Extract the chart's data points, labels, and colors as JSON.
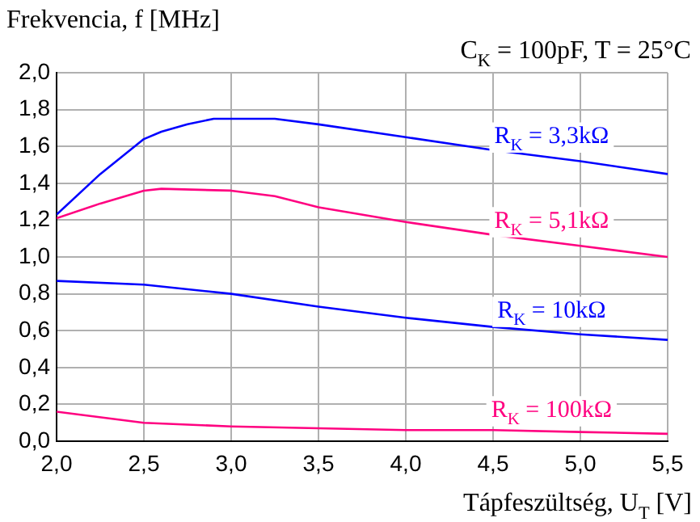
{
  "chart_data": {
    "type": "line",
    "ylabel": "Frekvencia, f [MHz]",
    "xlabel": "Tápfeszültség, U$_{T}$ [V]",
    "annotations": [
      "C$_{K}$ = 100pF, T = 25°C"
    ],
    "xlim": [
      2.0,
      5.5
    ],
    "xticks": [
      {
        "value": 2,
        "label": "2,0"
      },
      {
        "value": 2.5,
        "label": "2,5"
      },
      {
        "value": 3,
        "label": "3,0"
      },
      {
        "value": 3.5,
        "label": "3,5"
      },
      {
        "value": 4,
        "label": "4,0"
      },
      {
        "value": 4.5,
        "label": "4,5"
      },
      {
        "value": 5,
        "label": "5,0"
      },
      {
        "value": 5.5,
        "label": "5,5"
      }
    ],
    "ylim": [
      0,
      2.0
    ],
    "yticks": [
      {
        "value": 0,
        "label": "0,0"
      },
      {
        "value": 0.2,
        "label": "0,2"
      },
      {
        "value": 0.4,
        "label": "0,4"
      },
      {
        "value": 0.6,
        "label": "0,6"
      },
      {
        "value": 0.8,
        "label": "0,8"
      },
      {
        "value": 1,
        "label": "1,0"
      },
      {
        "value": 1.2,
        "label": "1,2"
      },
      {
        "value": 1.4,
        "label": "1,4"
      },
      {
        "value": 1.6,
        "label": "1,6"
      },
      {
        "value": 1.8,
        "label": "1,8"
      },
      {
        "value": 2,
        "label": "2,0"
      }
    ],
    "grid": true,
    "legend": false,
    "marker": "none",
    "line_style": "solid",
    "series": [
      {
        "name": "R$_{K}$ = 3,3kΩ",
        "color": "#0000ff",
        "x": [
          2.0,
          2.25,
          2.5,
          2.6,
          2.75,
          2.9,
          3.0,
          3.25,
          3.5,
          4.0,
          4.5,
          5.0,
          5.5
        ],
        "values": [
          1.23,
          1.45,
          1.64,
          1.68,
          1.72,
          1.75,
          1.75,
          1.75,
          1.72,
          1.65,
          1.58,
          1.52,
          1.45
        ]
      },
      {
        "name": "R$_{K}$ = 5,1kΩ",
        "color": "#ff0080",
        "x": [
          2.0,
          2.25,
          2.5,
          2.6,
          3.0,
          3.25,
          3.5,
          4.0,
          4.5,
          5.0,
          5.5
        ],
        "values": [
          1.21,
          1.29,
          1.36,
          1.37,
          1.36,
          1.33,
          1.27,
          1.19,
          1.12,
          1.06,
          1.0
        ]
      },
      {
        "name": "R$_{K}$ = 10kΩ",
        "color": "#0000ff",
        "x": [
          2.0,
          2.5,
          3.0,
          3.5,
          4.0,
          4.5,
          5.0,
          5.5
        ],
        "values": [
          0.87,
          0.85,
          0.8,
          0.73,
          0.67,
          0.62,
          0.58,
          0.55
        ]
      },
      {
        "name": "R$_{K}$ = 100kΩ",
        "color": "#ff0080",
        "x": [
          2.0,
          2.5,
          3.0,
          3.5,
          4.0,
          4.5,
          5.0,
          5.5
        ],
        "values": [
          0.16,
          0.1,
          0.08,
          0.07,
          0.06,
          0.06,
          0.05,
          0.04
        ]
      }
    ]
  }
}
